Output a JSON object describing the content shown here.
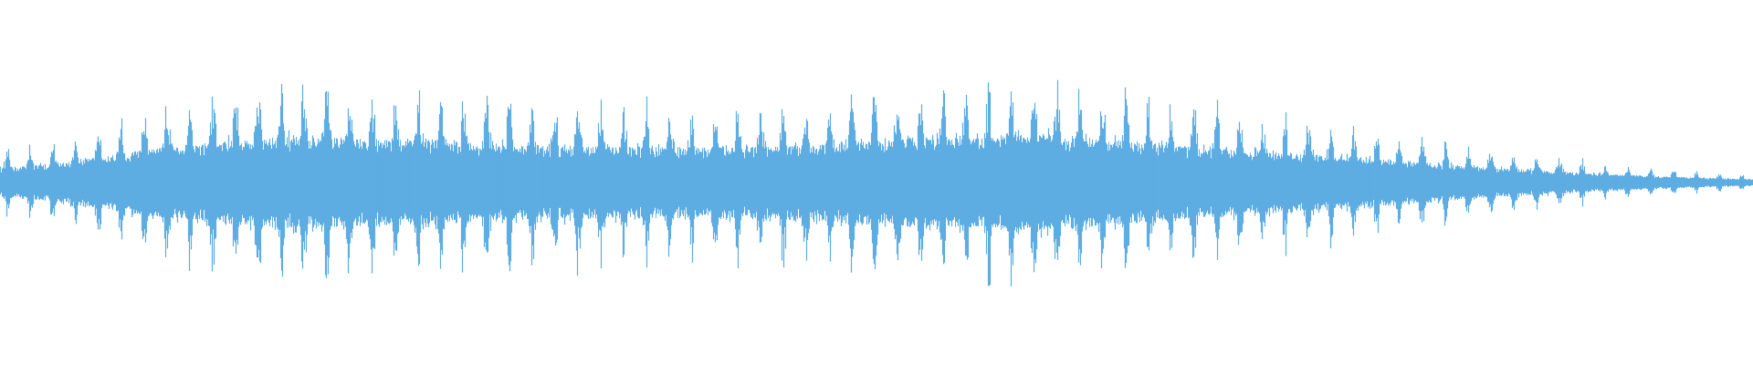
{
  "waveform": {
    "color": "#5dade2",
    "background": "#ffffff",
    "amplitude_range": [
      -1,
      1
    ],
    "envelope": [
      [
        0.0,
        0.22
      ],
      [
        0.03,
        0.28
      ],
      [
        0.06,
        0.4
      ],
      [
        0.1,
        0.55
      ],
      [
        0.13,
        0.63
      ],
      [
        0.16,
        0.68
      ],
      [
        0.2,
        0.66
      ],
      [
        0.25,
        0.62
      ],
      [
        0.3,
        0.56
      ],
      [
        0.35,
        0.54
      ],
      [
        0.4,
        0.52
      ],
      [
        0.45,
        0.55
      ],
      [
        0.5,
        0.62
      ],
      [
        0.55,
        0.68
      ],
      [
        0.59,
        0.72
      ],
      [
        0.63,
        0.66
      ],
      [
        0.67,
        0.55
      ],
      [
        0.71,
        0.48
      ],
      [
        0.75,
        0.42
      ],
      [
        0.8,
        0.33
      ],
      [
        0.84,
        0.24
      ],
      [
        0.88,
        0.18
      ],
      [
        0.92,
        0.12
      ],
      [
        0.96,
        0.08
      ],
      [
        1.0,
        0.05
      ]
    ]
  }
}
